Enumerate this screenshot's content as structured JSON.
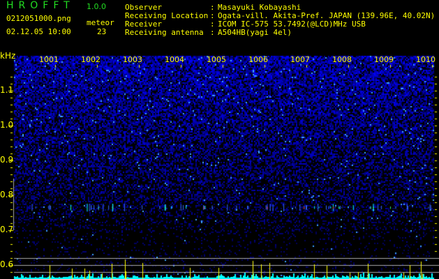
{
  "header": {
    "app_title": "HROFFT",
    "version": "1.0.0",
    "filename": "0212051000.png",
    "datetime": "02.12.05 10:00",
    "meteor_label": "meteor",
    "meteor_count": "23",
    "info": [
      {
        "label": "Observer",
        "value": "Masayuki Kobayashi"
      },
      {
        "label": "Receiving Location",
        "value": "Ogata-vill. Akita-Pref. JAPAN (139.96E, 40.02N)"
      },
      {
        "label": "Receiver",
        "value": "ICOM IC-575 53.7492(@LCD)MHz USB"
      },
      {
        "label": "Receiving antenna",
        "value": "A504HB(yagi 4el)"
      }
    ]
  },
  "chart_data": {
    "type": "heatmap",
    "ylabel": "kHz",
    "y_ticks": [
      "1.1",
      "1.0",
      "0.9",
      "0.8",
      "0.7",
      "0.6"
    ],
    "x_ticks": [
      "1001",
      "1002",
      "1003",
      "1004",
      "1005",
      "1006",
      "1007",
      "1008",
      "1009",
      "1010"
    ],
    "ylim": [
      0.56,
      1.16
    ],
    "echo_band_khz": 0.765,
    "colors": {
      "noise": "#1a1aff",
      "axis": "#ffff00",
      "histogram": "#00ffff",
      "spike": "#ffff00",
      "title": "#22dd22"
    }
  }
}
